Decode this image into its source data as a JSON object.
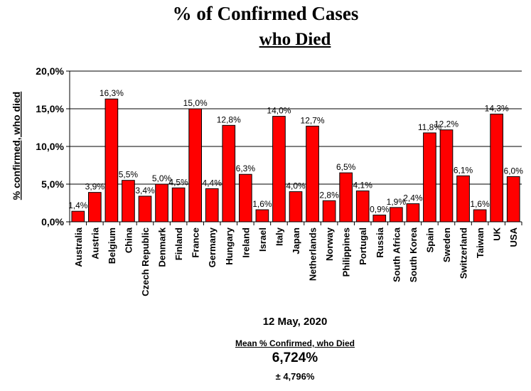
{
  "chart_data": {
    "type": "bar",
    "title": "% of Confirmed Cases",
    "subtitle": "who Died",
    "ylabel": "% confirmed, who died",
    "xlabel": "",
    "ylim": [
      0,
      20
    ],
    "yticks": [
      "0,0%",
      "5,0%",
      "10,0%",
      "15,0%",
      "20,0%"
    ],
    "ytick_values": [
      0,
      5,
      10,
      15,
      20
    ],
    "grid": true,
    "bar_color": "#ff0000",
    "categories": [
      "Australia",
      "Austria",
      "Belgium",
      "China",
      "Czech Republic",
      "Denmark",
      "Finland",
      "France",
      "Germany",
      "Hungary",
      "Ireland",
      "Israel",
      "Italy",
      "Japan",
      "Netherlands",
      "Norway",
      "Philippines",
      "Portugal",
      "Russia",
      "South Africa",
      "South Korea",
      "Spain",
      "Sweden",
      "Switzerland",
      "Taiwan",
      "UK",
      "USA"
    ],
    "values": [
      1.4,
      3.9,
      16.3,
      5.5,
      3.4,
      5.0,
      4.5,
      15.0,
      4.4,
      12.8,
      6.3,
      1.6,
      14.0,
      4.0,
      12.7,
      2.8,
      6.5,
      4.1,
      0.9,
      1.9,
      2.4,
      11.8,
      12.2,
      6.1,
      1.6,
      14.3,
      6.0
    ],
    "labels": [
      "1,4%",
      "3,9%",
      "16,3%",
      "5,5%",
      "3,4%",
      "5,0%",
      "4,5%",
      "15,0%",
      "4,4%",
      "12,8%",
      "6,3%",
      "1,6%",
      "14,0%",
      "4,0%",
      "12,7%",
      "2,8%",
      "6,5%",
      "4,1%",
      "0,9%",
      "1,9%",
      "2,4%",
      "11,8%",
      "12,2%",
      "6,1%",
      "1,6%",
      "14,3%",
      "6,0%"
    ]
  },
  "footer": {
    "date": "12 May, 2020",
    "mean_label": "Mean % Confirmed, who Died",
    "mean_value": "6,724%",
    "sd_value": "± 4,796%"
  }
}
